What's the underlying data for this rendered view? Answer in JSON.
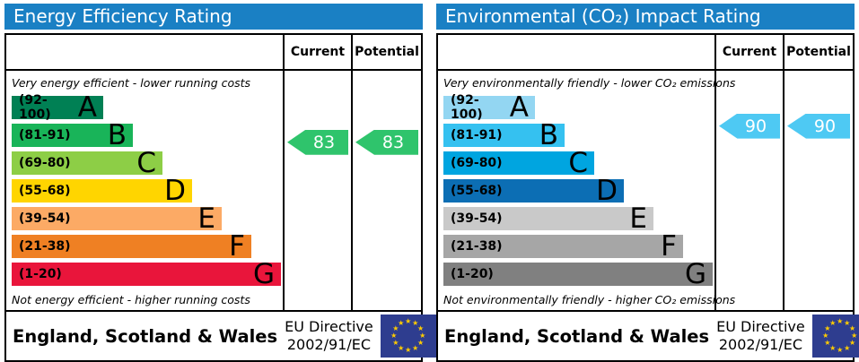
{
  "colors": {
    "title_bar": "#1a80c4",
    "border": "#000000",
    "eu_flag_blue": "#2e3d8f",
    "eu_star_yellow": "#ffcc00",
    "arrow_text": "#ffffff"
  },
  "panels": [
    {
      "title": "Energy Efficiency Rating",
      "header": {
        "current": "Current",
        "potential": "Potential"
      },
      "top_note": "Very energy efficient - lower running costs",
      "bottom_note": "Not energy efficient - higher running costs",
      "bands": [
        {
          "label": "(92-100)",
          "letter": "A",
          "min": 92,
          "max": 100,
          "color": "#008054"
        },
        {
          "label": "(81-91)",
          "letter": "B",
          "min": 81,
          "max": 91,
          "color": "#19b459"
        },
        {
          "label": "(69-80)",
          "letter": "C",
          "min": 69,
          "max": 80,
          "color": "#8dce46"
        },
        {
          "label": "(55-68)",
          "letter": "D",
          "min": 55,
          "max": 68,
          "color": "#ffd500"
        },
        {
          "label": "(39-54)",
          "letter": "E",
          "min": 39,
          "max": 54,
          "color": "#fcaa65"
        },
        {
          "label": "(21-38)",
          "letter": "F",
          "min": 21,
          "max": 38,
          "color": "#ef8023"
        },
        {
          "label": "(1-20)",
          "letter": "G",
          "min": 1,
          "max": 20,
          "color": "#e9153b"
        }
      ],
      "current": 83,
      "potential": 83,
      "arrow_color": "#2fc46c",
      "footer": {
        "region": "England, Scotland & Wales",
        "directive": [
          "EU Directive",
          "2002/91/EC"
        ]
      }
    },
    {
      "title": "Environmental (CO₂) Impact Rating",
      "header": {
        "current": "Current",
        "potential": "Potential"
      },
      "top_note": "Very environmentally friendly - lower CO₂ emissions",
      "bottom_note": "Not environmentally friendly - higher CO₂ emissions",
      "bands": [
        {
          "label": "(92-100)",
          "letter": "A",
          "min": 92,
          "max": 100,
          "color": "#93d6f2"
        },
        {
          "label": "(81-91)",
          "letter": "B",
          "min": 81,
          "max": 91,
          "color": "#35c1f0"
        },
        {
          "label": "(69-80)",
          "letter": "C",
          "min": 69,
          "max": 80,
          "color": "#00a5e0"
        },
        {
          "label": "(55-68)",
          "letter": "D",
          "min": 55,
          "max": 68,
          "color": "#0c6eb4"
        },
        {
          "label": "(39-54)",
          "letter": "E",
          "min": 39,
          "max": 54,
          "color": "#c9c9c9"
        },
        {
          "label": "(21-38)",
          "letter": "F",
          "min": 21,
          "max": 38,
          "color": "#a6a6a6"
        },
        {
          "label": "(1-20)",
          "letter": "G",
          "min": 1,
          "max": 20,
          "color": "#808080"
        }
      ],
      "current": 90,
      "potential": 90,
      "arrow_color": "#4ec9f3",
      "footer": {
        "region": "England, Scotland & Wales",
        "directive": [
          "EU Directive",
          "2002/91/EC"
        ]
      }
    }
  ],
  "chart_data": [
    {
      "type": "bar",
      "title": "Energy Efficiency Rating",
      "orientation": "horizontal",
      "categories": [
        "A",
        "B",
        "C",
        "D",
        "E",
        "F",
        "G"
      ],
      "band_ranges": [
        "92-100",
        "81-91",
        "69-80",
        "55-68",
        "39-54",
        "21-38",
        "1-20"
      ],
      "band_colors": [
        "#008054",
        "#19b459",
        "#8dce46",
        "#ffd500",
        "#fcaa65",
        "#ef8023",
        "#e9153b"
      ],
      "series": [
        {
          "name": "Current",
          "value": 83,
          "band": "B"
        },
        {
          "name": "Potential",
          "value": 83,
          "band": "B"
        }
      ],
      "annotations": [
        "Very energy efficient - lower running costs",
        "Not energy efficient - higher running costs",
        "England, Scotland & Wales",
        "EU Directive 2002/91/EC"
      ],
      "value_range": [
        1,
        100
      ]
    },
    {
      "type": "bar",
      "title": "Environmental (CO₂) Impact Rating",
      "orientation": "horizontal",
      "categories": [
        "A",
        "B",
        "C",
        "D",
        "E",
        "F",
        "G"
      ],
      "band_ranges": [
        "92-100",
        "81-91",
        "69-80",
        "55-68",
        "39-54",
        "21-38",
        "1-20"
      ],
      "band_colors": [
        "#93d6f2",
        "#35c1f0",
        "#00a5e0",
        "#0c6eb4",
        "#c9c9c9",
        "#a6a6a6",
        "#808080"
      ],
      "series": [
        {
          "name": "Current",
          "value": 90,
          "band": "B"
        },
        {
          "name": "Potential",
          "value": 90,
          "band": "B"
        }
      ],
      "annotations": [
        "Very environmentally friendly - lower CO₂ emissions",
        "Not environmentally friendly - higher CO₂ emissions",
        "England, Scotland & Wales",
        "EU Directive 2002/91/EC"
      ],
      "value_range": [
        1,
        100
      ]
    }
  ]
}
